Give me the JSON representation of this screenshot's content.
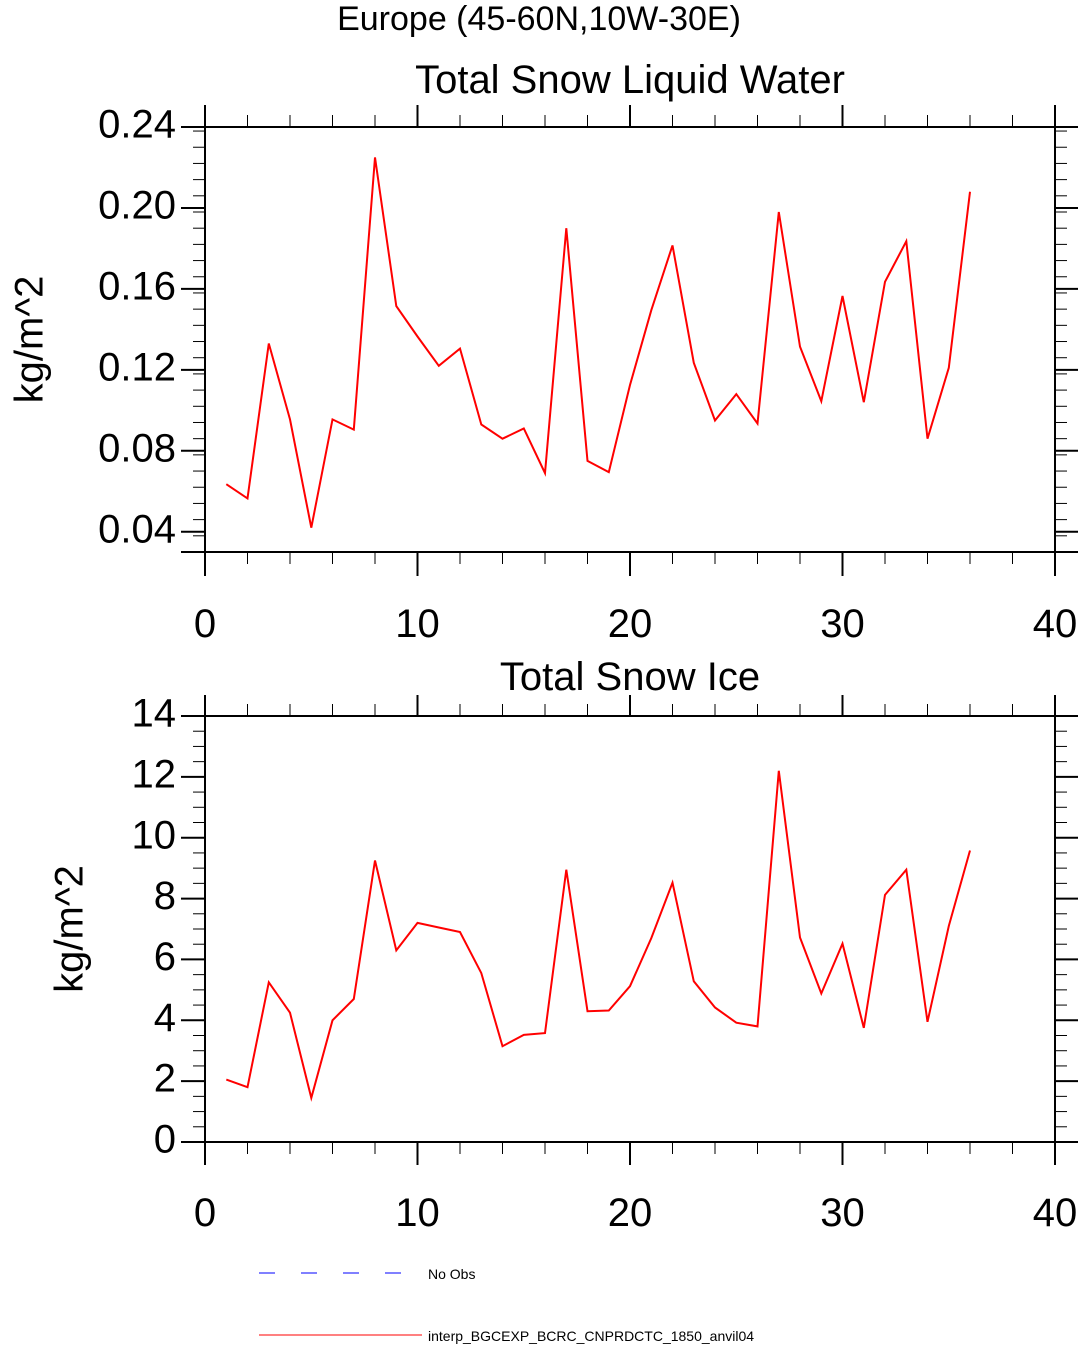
{
  "page_title": "Europe (45-60N,10W-30E)",
  "chart_data": [
    {
      "type": "line",
      "title": "Total Snow Liquid Water",
      "xlabel": "",
      "ylabel": "kg/m^2",
      "xlim": [
        0,
        40
      ],
      "ylim": [
        0.03,
        0.24
      ],
      "x_ticks": [
        0,
        10,
        20,
        30,
        40
      ],
      "x_tick_labels": [
        "0",
        "10",
        "20",
        "30",
        "40"
      ],
      "y_ticks": [
        0.04,
        0.08,
        0.12,
        0.16,
        0.2,
        0.24
      ],
      "y_tick_labels": [
        "0.04",
        "0.08",
        "0.12",
        "0.16",
        "0.20",
        "0.24"
      ],
      "x_minor_step": 2,
      "y_minor_step": 0.008,
      "series": [
        {
          "name": "interp_BGCEXP_BCRC_CNPRDCTC_1850_anvil04",
          "color": "#ff0000",
          "x": [
            1,
            2,
            3,
            4,
            5,
            6,
            7,
            8,
            9,
            10,
            11,
            12,
            13,
            14,
            15,
            16,
            17,
            18,
            19,
            20,
            21,
            22,
            23,
            24,
            25,
            26,
            27,
            28,
            29,
            30,
            31,
            32,
            33,
            34,
            35,
            36
          ],
          "values": [
            0.0635,
            0.0565,
            0.133,
            0.0955,
            0.042,
            0.0955,
            0.0905,
            0.225,
            0.1515,
            0.1365,
            0.122,
            0.1305,
            0.093,
            0.086,
            0.091,
            0.069,
            0.19,
            0.075,
            0.0695,
            0.1125,
            0.1495,
            0.1815,
            0.1235,
            0.095,
            0.108,
            0.0935,
            0.198,
            0.1315,
            0.1045,
            0.1565,
            0.104,
            0.1635,
            0.1835,
            0.086,
            0.121,
            0.208
          ]
        }
      ]
    },
    {
      "type": "line",
      "title": "Total Snow Ice",
      "xlabel": "",
      "ylabel": "kg/m^2",
      "xlim": [
        0,
        40
      ],
      "ylim": [
        0,
        14
      ],
      "x_ticks": [
        0,
        10,
        20,
        30,
        40
      ],
      "x_tick_labels": [
        "0",
        "10",
        "20",
        "30",
        "40"
      ],
      "y_ticks": [
        0,
        2,
        4,
        6,
        8,
        10,
        12,
        14
      ],
      "y_tick_labels": [
        "0",
        "2",
        "4",
        "6",
        "8",
        "10",
        "12",
        "14"
      ],
      "x_minor_step": 2,
      "y_minor_step": 0.5,
      "series": [
        {
          "name": "interp_BGCEXP_BCRC_CNPRDCTC_1850_anvil04",
          "color": "#ff0000",
          "x": [
            1,
            2,
            3,
            4,
            5,
            6,
            7,
            8,
            9,
            10,
            11,
            12,
            13,
            14,
            15,
            16,
            17,
            18,
            19,
            20,
            21,
            22,
            23,
            24,
            25,
            26,
            27,
            28,
            29,
            30,
            31,
            32,
            33,
            34,
            35,
            36
          ],
          "values": [
            2.05,
            1.8,
            5.25,
            4.25,
            1.45,
            4.0,
            4.7,
            9.25,
            6.3,
            7.2,
            7.05,
            6.9,
            5.55,
            3.15,
            3.52,
            3.58,
            8.95,
            4.3,
            4.32,
            5.12,
            6.7,
            8.52,
            5.28,
            4.42,
            3.92,
            3.8,
            12.2,
            6.72,
            4.88,
            6.52,
            3.75,
            8.12,
            8.95,
            3.95,
            7.1,
            9.58
          ]
        }
      ]
    }
  ],
  "legend": {
    "position": "bottom-left",
    "items": [
      {
        "label": "No Obs",
        "color": "#0000ff",
        "style": "dashed"
      },
      {
        "label": "interp_BGCEXP_BCRC_CNPRDCTC_1850_anvil04",
        "color": "#ff0000",
        "style": "solid"
      }
    ]
  }
}
